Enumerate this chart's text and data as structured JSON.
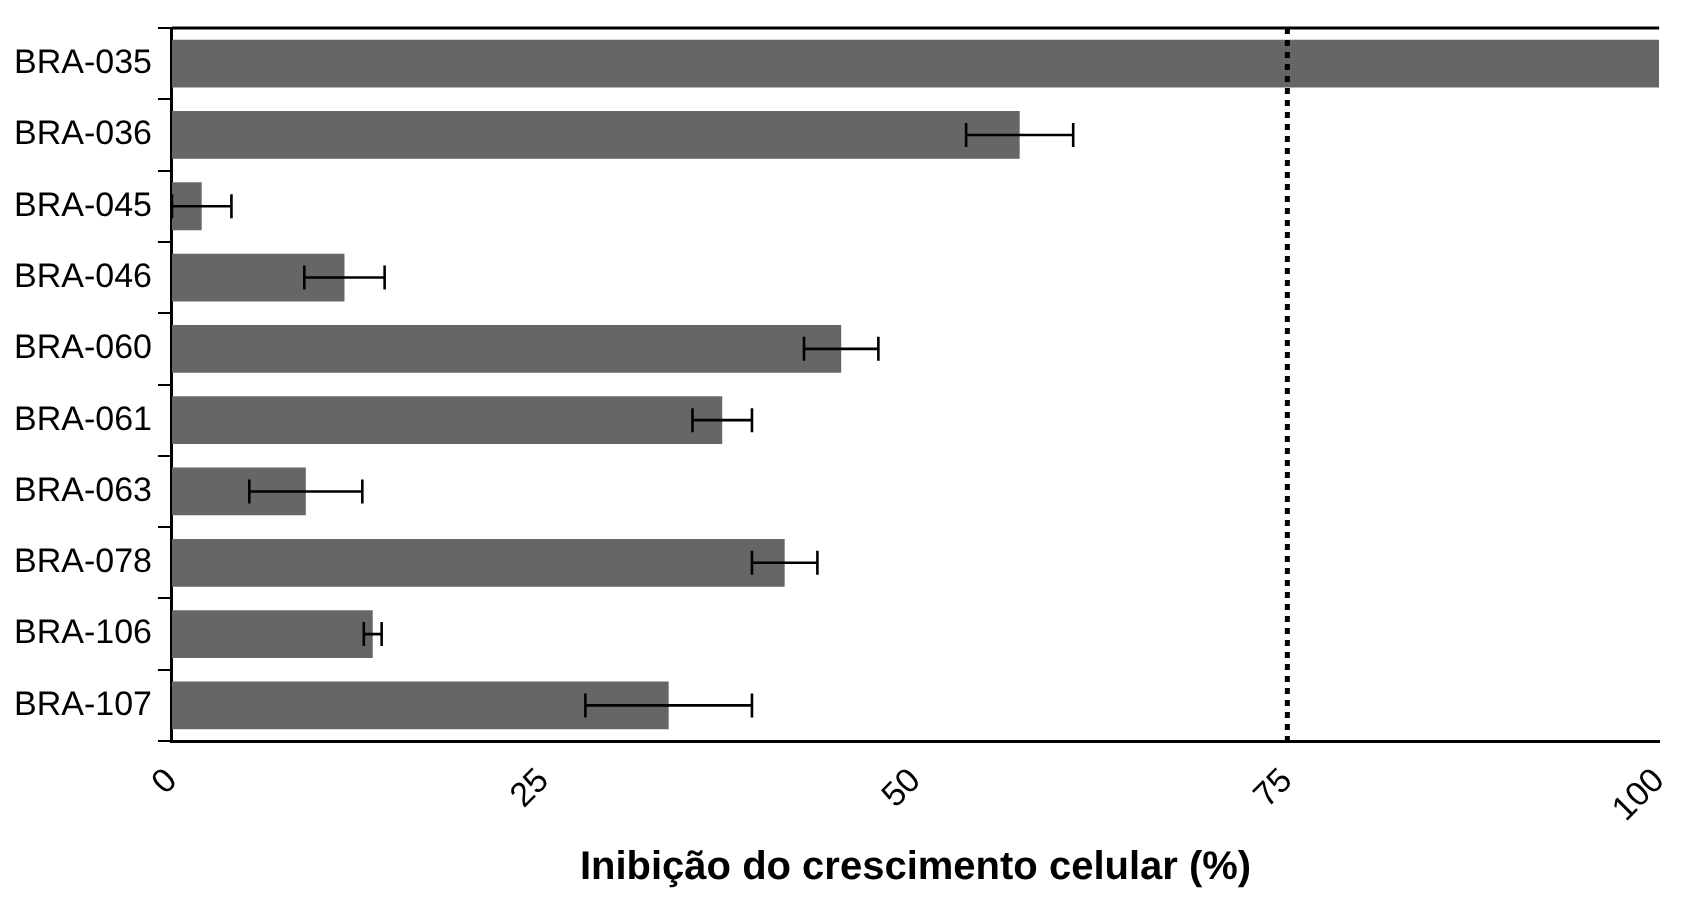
{
  "chart_data": {
    "type": "bar",
    "orientation": "horizontal",
    "xlabel": "Inibição do crescimento celular (%)",
    "categories": [
      "BRA-035",
      "BRA-036",
      "BRA-045",
      "BRA-046",
      "BRA-060",
      "BRA-061",
      "BRA-063",
      "BRA-078",
      "BRA-106",
      "BRA-107"
    ],
    "values": [
      100,
      57,
      2,
      11.6,
      45,
      37,
      9,
      41.2,
      13.5,
      33.4
    ],
    "errors": [
      null,
      3.6,
      2,
      2.7,
      2.5,
      2,
      3.8,
      2.2,
      0.6,
      5.6
    ],
    "color": "#666666",
    "xlim": [
      0,
      100
    ],
    "xticks": [
      0,
      25,
      50,
      75,
      100
    ],
    "grid": false,
    "legend": false,
    "ref_lines": [
      {
        "axis": "x",
        "value": 75,
        "color": "#000000",
        "line_style": "dotted"
      }
    ]
  }
}
